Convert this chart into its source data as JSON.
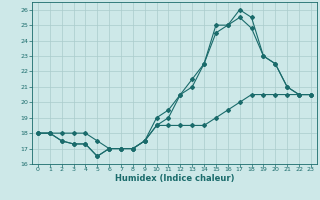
{
  "xlabel": "Humidex (Indice chaleur)",
  "xlim": [
    -0.5,
    23.5
  ],
  "ylim": [
    16,
    26.5
  ],
  "yticks": [
    16,
    17,
    18,
    19,
    20,
    21,
    22,
    23,
    24,
    25,
    26
  ],
  "xticks": [
    0,
    1,
    2,
    3,
    4,
    5,
    6,
    7,
    8,
    9,
    10,
    11,
    12,
    13,
    14,
    15,
    16,
    17,
    18,
    19,
    20,
    21,
    22,
    23
  ],
  "bg_color": "#cde8e8",
  "grid_color": "#aacccc",
  "line_color": "#1a6b6b",
  "line1_y": [
    18,
    18,
    18,
    18,
    18,
    17.5,
    17,
    17,
    17,
    17.5,
    18.5,
    18.5,
    18.5,
    18.5,
    18.5,
    19.0,
    19.5,
    20.0,
    20.5,
    20.5,
    20.5,
    20.5,
    20.5,
    20.5
  ],
  "line2_y": [
    18,
    18,
    17.5,
    17.3,
    17.3,
    16.5,
    17.0,
    17.0,
    17.0,
    17.5,
    19.0,
    19.5,
    20.5,
    21.5,
    22.5,
    25.0,
    25.0,
    26.0,
    25.5,
    23.0,
    22.5,
    21.0,
    20.5,
    20.5
  ],
  "line3_y": [
    18,
    18,
    17.5,
    17.3,
    17.3,
    16.5,
    17.0,
    17.0,
    17.0,
    17.5,
    18.5,
    19.0,
    20.5,
    21.0,
    22.5,
    24.5,
    25.0,
    25.5,
    24.8,
    23.0,
    22.5,
    21.0,
    20.5,
    20.5
  ]
}
